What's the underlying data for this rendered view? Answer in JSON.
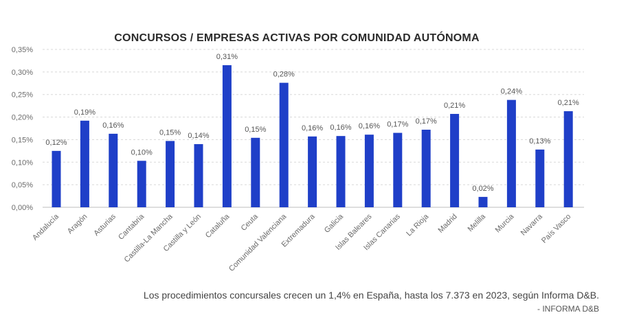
{
  "chart_data": {
    "type": "bar",
    "title": "CONCURSOS / EMPRESAS ACTIVAS POR COMUNIDAD AUTÓNOMA",
    "xlabel": "",
    "ylabel": "",
    "ylim": [
      0,
      0.35
    ],
    "yticks": [
      {
        "value": 0.35,
        "label": "0,35%"
      },
      {
        "value": 0.3,
        "label": "0,30%"
      },
      {
        "value": 0.25,
        "label": "0,25%"
      },
      {
        "value": 0.2,
        "label": "0,20%"
      },
      {
        "value": 0.15,
        "label": "0,15%"
      },
      {
        "value": 0.1,
        "label": "0,10%"
      },
      {
        "value": 0.05,
        "label": "0,05%"
      },
      {
        "value": 0.0,
        "label": "0,00%"
      }
    ],
    "grid": true,
    "bar_color": "#1f3fc8",
    "categories": [
      "Andalucía",
      "Aragón",
      "Asturias",
      "Cantabria",
      "Castilla-La Mancha",
      "Castilla y León",
      "Cataluña",
      "Ceuta",
      "Comunidad Valenciana",
      "Extremadura",
      "Galicia",
      "Islas Baleares",
      "Islas Canarias",
      "La Rioja",
      "Madrid",
      "Melilla",
      "Murcia",
      "Navarra",
      "País Vasco"
    ],
    "values": [
      0.125,
      0.192,
      0.163,
      0.103,
      0.147,
      0.14,
      0.315,
      0.154,
      0.276,
      0.157,
      0.158,
      0.161,
      0.165,
      0.172,
      0.207,
      0.023,
      0.238,
      0.128,
      0.213
    ],
    "data_labels": [
      "0,12%",
      "0,19%",
      "0,16%",
      "0,10%",
      "0,15%",
      "0,14%",
      "0,31%",
      "0,15%",
      "0,28%",
      "0,16%",
      "0,16%",
      "0,16%",
      "0,17%",
      "0,17%",
      "0,21%",
      "0,02%",
      "0,24%",
      "0,13%",
      "0,21%"
    ]
  },
  "caption": {
    "text": "Los procedimientos concursales crecen un 1,4% en España, hasta los 7.373 en 2023, según Informa D&B.",
    "credit": "- INFORMA D&B"
  }
}
